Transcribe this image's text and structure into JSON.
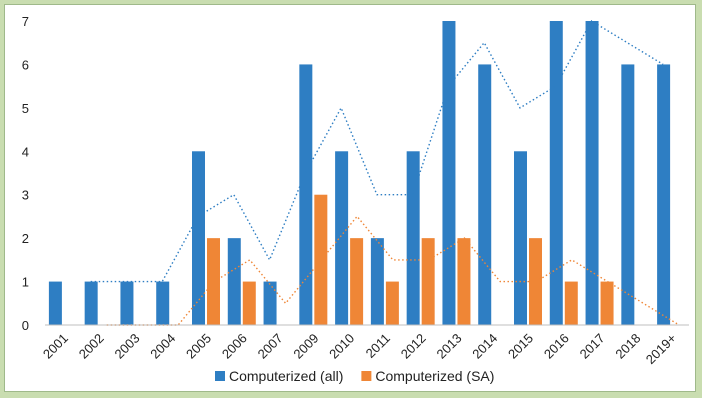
{
  "chart_data": {
    "type": "bar",
    "categories": [
      "2001",
      "2002",
      "2003",
      "2004",
      "2005",
      "2006",
      "2007",
      "2009",
      "2010",
      "2011",
      "2012",
      "2013",
      "2014",
      "2015",
      "2016",
      "2017",
      "2018",
      "2019+"
    ],
    "series": [
      {
        "name": "Computerized (all)",
        "values": [
          1,
          1,
          1,
          1,
          4,
          2,
          1,
          6,
          4,
          2,
          4,
          7,
          6,
          4,
          7,
          7,
          6,
          6
        ],
        "color": "#2e7ec3"
      },
      {
        "name": "Computerized (SA)",
        "values": [
          0,
          0,
          0,
          0,
          2,
          1,
          0,
          3,
          2,
          1,
          2,
          2,
          0,
          2,
          1,
          1,
          0,
          0
        ],
        "color": "#ef8636"
      }
    ],
    "trendlines": [
      {
        "series": "Computerized (all)",
        "style": "dotted",
        "color": "#2e7ec3"
      },
      {
        "series": "Computerized (SA)",
        "style": "dotted",
        "color": "#ef8636"
      }
    ],
    "ylim": [
      0,
      7
    ],
    "yticks": [
      "0",
      "1",
      "2",
      "3",
      "4",
      "5",
      "6",
      "7"
    ],
    "grid": false,
    "legend_position": "bottom"
  }
}
